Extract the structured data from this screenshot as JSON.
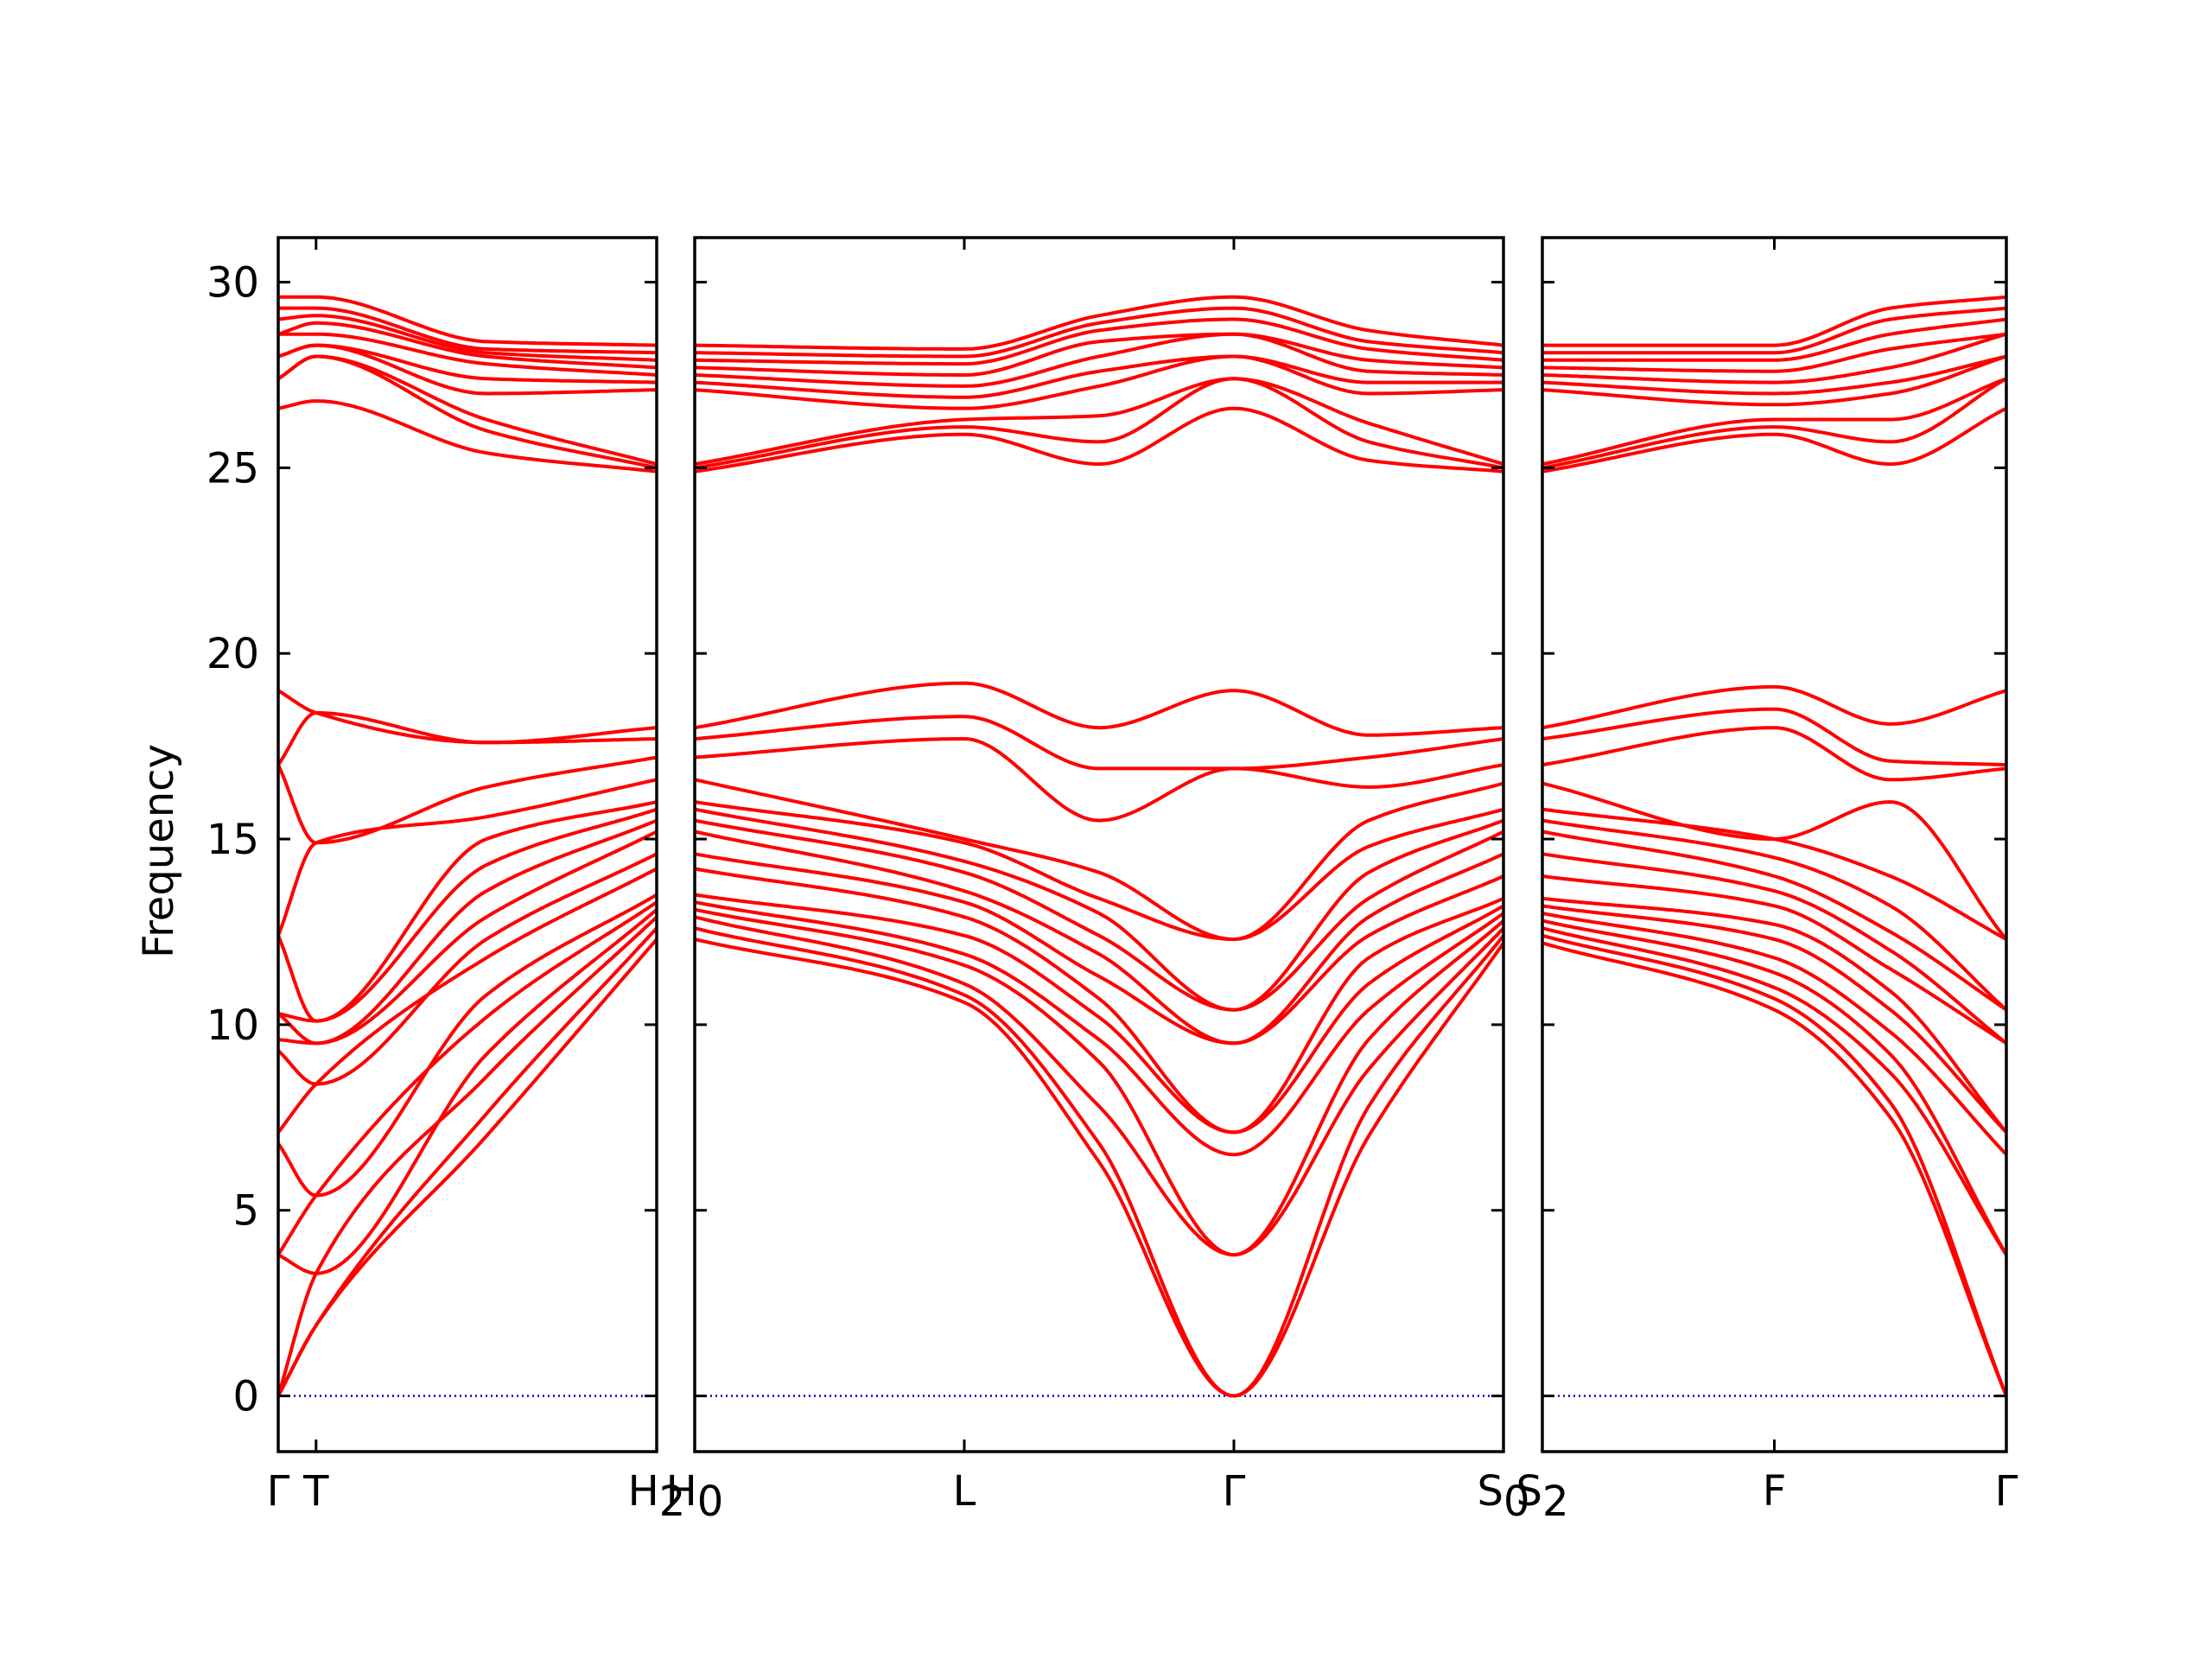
{
  "chart_data": {
    "type": "line",
    "title": "",
    "xlabel": "",
    "ylabel": "Frequency",
    "ylim": [
      -1.5,
      31.2
    ],
    "yticks": [
      0,
      5,
      10,
      15,
      20,
      25,
      30
    ],
    "ytick_labels": [
      "0",
      "5",
      "10",
      "15",
      "20",
      "25",
      "30"
    ],
    "grid": false,
    "legend": "none",
    "colors": {
      "bands": "#ff0000",
      "zero_line": "#0000cc",
      "axes": "#000000"
    },
    "panels": [
      {
        "name": "panel-1",
        "points": [
          {
            "label": "Γ",
            "pos": 0.0
          },
          {
            "label": "T",
            "pos": 0.1
          },
          {
            "label": "H",
            "sub": "2",
            "pos": 1.0
          }
        ],
        "xlim": [
          0.0,
          1.0
        ],
        "anchors_x": [
          0,
          0.1,
          0.55,
          1
        ],
        "bands": [
          [
            0,
            1.9,
            7.0,
            12.3
          ],
          [
            0,
            1.9,
            7.6,
            12.6
          ],
          [
            0,
            3.3,
            8.6,
            12.9
          ],
          [
            3.8,
            3.3,
            9.2,
            13.1
          ],
          [
            3.8,
            5.4,
            10.2,
            13.3
          ],
          [
            6.8,
            5.4,
            10.8,
            13.5
          ],
          [
            7.1,
            8.4,
            11.8,
            14.2
          ],
          [
            9.3,
            8.4,
            12.3,
            14.6
          ],
          [
            9.6,
            9.5,
            12.9,
            15.2
          ],
          [
            10.3,
            9.5,
            13.6,
            15.5
          ],
          [
            10.3,
            10.1,
            14.3,
            15.8
          ],
          [
            12.4,
            10.1,
            15.0,
            16.0
          ],
          [
            12.4,
            14.9,
            15.6,
            16.6
          ],
          [
            17.0,
            14.9,
            16.4,
            17.2
          ],
          [
            17.0,
            18.4,
            17.6,
            17.7
          ],
          [
            19.0,
            18.4,
            17.6,
            18.0
          ],
          [
            26.6,
            26.8,
            25.4,
            24.9
          ],
          [
            27.4,
            28.0,
            26.0,
            25.0
          ],
          [
            27.4,
            28.0,
            26.3,
            25.1
          ],
          [
            28.0,
            28.3,
            27.0,
            27.1
          ],
          [
            28.0,
            28.3,
            27.4,
            27.3
          ],
          [
            28.6,
            28.6,
            27.8,
            27.5
          ],
          [
            28.6,
            28.9,
            28.0,
            27.7
          ],
          [
            29.0,
            29.1,
            28.1,
            27.9
          ],
          [
            29.3,
            29.3,
            28.2,
            28.1
          ],
          [
            29.6,
            29.6,
            28.4,
            28.3
          ]
        ]
      },
      {
        "name": "panel-2",
        "points": [
          {
            "label": "H",
            "sub": "0",
            "pos": 0.0
          },
          {
            "label": "L",
            "pos": 1.0
          },
          {
            "label": "Γ",
            "pos": 2.0
          },
          {
            "label": "S",
            "sub": "0",
            "pos": 3.0
          }
        ],
        "xlim": [
          0.0,
          3.0
        ],
        "anchors_x": [
          0,
          1,
          1.5,
          2,
          2.5,
          3
        ],
        "bands": [
          [
            12.3,
            10.6,
            6.3,
            0,
            7.0,
            12.2
          ],
          [
            12.6,
            10.8,
            6.8,
            0,
            7.8,
            12.4
          ],
          [
            12.9,
            11.1,
            7.8,
            3.8,
            8.8,
            12.6
          ],
          [
            13.1,
            11.6,
            9.0,
            3.8,
            9.6,
            12.8
          ],
          [
            13.3,
            11.9,
            9.6,
            6.5,
            10.4,
            13.0
          ],
          [
            13.5,
            12.4,
            10.2,
            7.1,
            11.1,
            13.2
          ],
          [
            14.2,
            12.9,
            10.7,
            7.1,
            11.8,
            13.4
          ],
          [
            14.6,
            13.3,
            11.3,
            9.5,
            12.4,
            14.0
          ],
          [
            15.2,
            13.6,
            11.9,
            9.5,
            12.9,
            14.6
          ],
          [
            15.5,
            14.1,
            12.4,
            10.4,
            13.4,
            15.2
          ],
          [
            15.8,
            14.4,
            13.0,
            10.4,
            14.1,
            15.5
          ],
          [
            16.0,
            14.9,
            13.4,
            12.3,
            14.8,
            15.8
          ],
          [
            16.6,
            15.0,
            14.1,
            12.3,
            15.5,
            16.5
          ],
          [
            17.2,
            17.7,
            15.5,
            16.9,
            16.4,
            17.0
          ],
          [
            17.7,
            18.3,
            16.9,
            16.9,
            17.2,
            17.7
          ],
          [
            18.0,
            19.2,
            18.0,
            19.0,
            17.8,
            18.0
          ],
          [
            24.9,
            25.9,
            25.1,
            26.6,
            25.2,
            24.9
          ],
          [
            25.0,
            26.1,
            25.7,
            27.4,
            25.7,
            25.0
          ],
          [
            25.1,
            26.3,
            26.4,
            27.4,
            26.2,
            25.1
          ],
          [
            27.1,
            26.6,
            27.2,
            28.0,
            27.0,
            27.1
          ],
          [
            27.3,
            26.9,
            27.6,
            28.0,
            27.3,
            27.3
          ],
          [
            27.5,
            27.2,
            28.0,
            28.6,
            27.6,
            27.5
          ],
          [
            27.7,
            27.5,
            28.4,
            28.6,
            27.9,
            27.7
          ],
          [
            27.9,
            27.8,
            28.7,
            29.0,
            28.2,
            27.9
          ],
          [
            28.1,
            28.0,
            28.9,
            29.3,
            28.4,
            28.1
          ],
          [
            28.3,
            28.2,
            29.1,
            29.6,
            28.7,
            28.3
          ]
        ]
      },
      {
        "name": "panel-3",
        "points": [
          {
            "label": "S",
            "sub": "2",
            "pos": 0.0
          },
          {
            "label": "F",
            "pos": 1.0
          },
          {
            "label": "Γ",
            "pos": 2.0
          }
        ],
        "xlim": [
          0.0,
          2.0
        ],
        "anchors_x": [
          0,
          1,
          1.5,
          2
        ],
        "bands": [
          [
            12.2,
            10.4,
            7.5,
            0
          ],
          [
            12.4,
            10.7,
            7.9,
            0
          ],
          [
            12.6,
            11.0,
            8.7,
            3.8
          ],
          [
            12.8,
            11.4,
            9.2,
            3.8
          ],
          [
            13.0,
            11.8,
            9.8,
            6.5
          ],
          [
            13.2,
            12.3,
            10.4,
            7.1
          ],
          [
            13.4,
            12.7,
            10.9,
            7.1
          ],
          [
            14.0,
            13.2,
            11.5,
            9.5
          ],
          [
            14.6,
            13.6,
            12.0,
            9.5
          ],
          [
            15.2,
            14.0,
            12.5,
            10.4
          ],
          [
            15.5,
            14.5,
            13.2,
            10.4
          ],
          [
            15.8,
            15.0,
            14.0,
            12.3
          ],
          [
            16.5,
            15.0,
            16.0,
            12.3
          ],
          [
            17.0,
            18.0,
            16.6,
            16.9
          ],
          [
            17.7,
            18.5,
            17.1,
            17.0
          ],
          [
            18.0,
            19.1,
            18.1,
            19.0
          ],
          [
            24.9,
            25.9,
            25.1,
            26.6
          ],
          [
            25.0,
            26.1,
            25.7,
            27.4
          ],
          [
            25.1,
            26.3,
            26.3,
            27.4
          ],
          [
            27.1,
            26.7,
            27.0,
            28.0
          ],
          [
            27.3,
            27.0,
            27.3,
            28.0
          ],
          [
            27.5,
            27.3,
            27.7,
            28.6
          ],
          [
            27.7,
            27.6,
            28.2,
            28.6
          ],
          [
            27.9,
            27.9,
            28.6,
            29.0
          ],
          [
            28.1,
            28.1,
            29.0,
            29.3
          ],
          [
            28.3,
            28.3,
            29.3,
            29.6
          ]
        ]
      }
    ]
  }
}
